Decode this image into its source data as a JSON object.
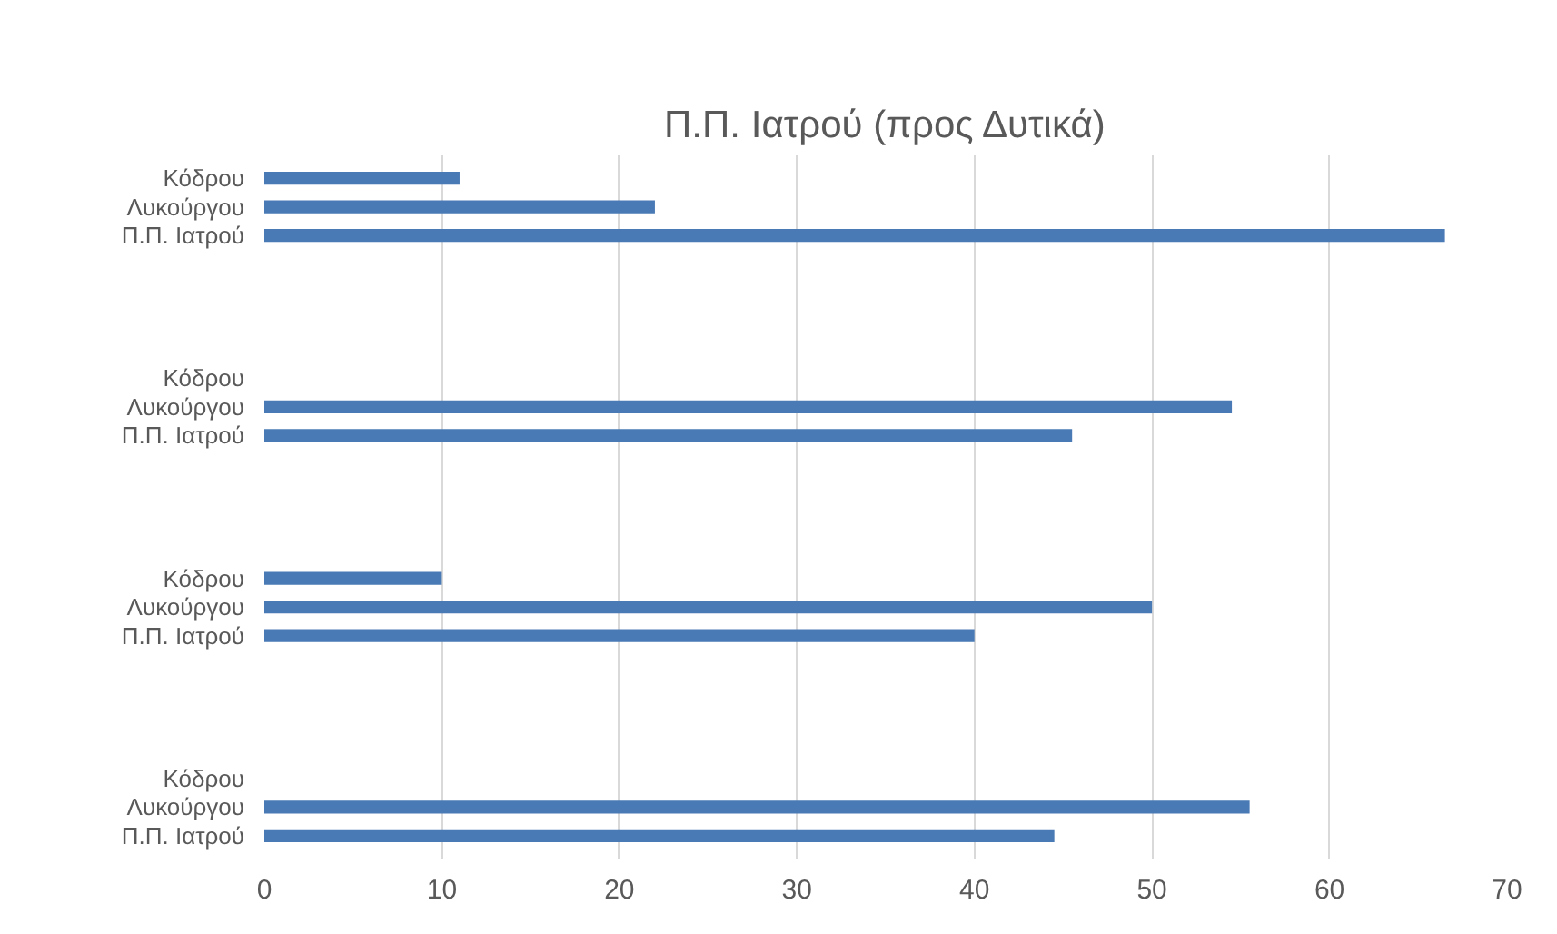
{
  "chart_data": {
    "type": "bar",
    "orientation": "horizontal",
    "title": "Π.Π. Ιατρού (προς Δυτικά)",
    "categories": [
      "Κόδρου",
      "Λυκούργου",
      "Π.Π. Ιατρού",
      null,
      null,
      null,
      null,
      "Κόδρου",
      "Λυκούργου",
      "Π.Π. Ιατρού",
      null,
      null,
      null,
      null,
      "Κόδρου",
      "Λυκούργου",
      "Π.Π. Ιατρού",
      null,
      null,
      null,
      null,
      "Κόδρου",
      "Λυκούργου",
      "Π.Π. Ιατρού"
    ],
    "values": [
      11,
      22,
      66.5,
      null,
      null,
      null,
      null,
      null,
      54.5,
      45.5,
      null,
      null,
      null,
      null,
      10,
      50,
      40,
      null,
      null,
      null,
      null,
      null,
      55.5,
      44.5
    ],
    "color": "#4a7ab5",
    "xlim": [
      0,
      70
    ],
    "xticks": [
      0,
      10,
      20,
      30,
      40,
      50,
      60,
      70
    ],
    "grid": "x"
  }
}
